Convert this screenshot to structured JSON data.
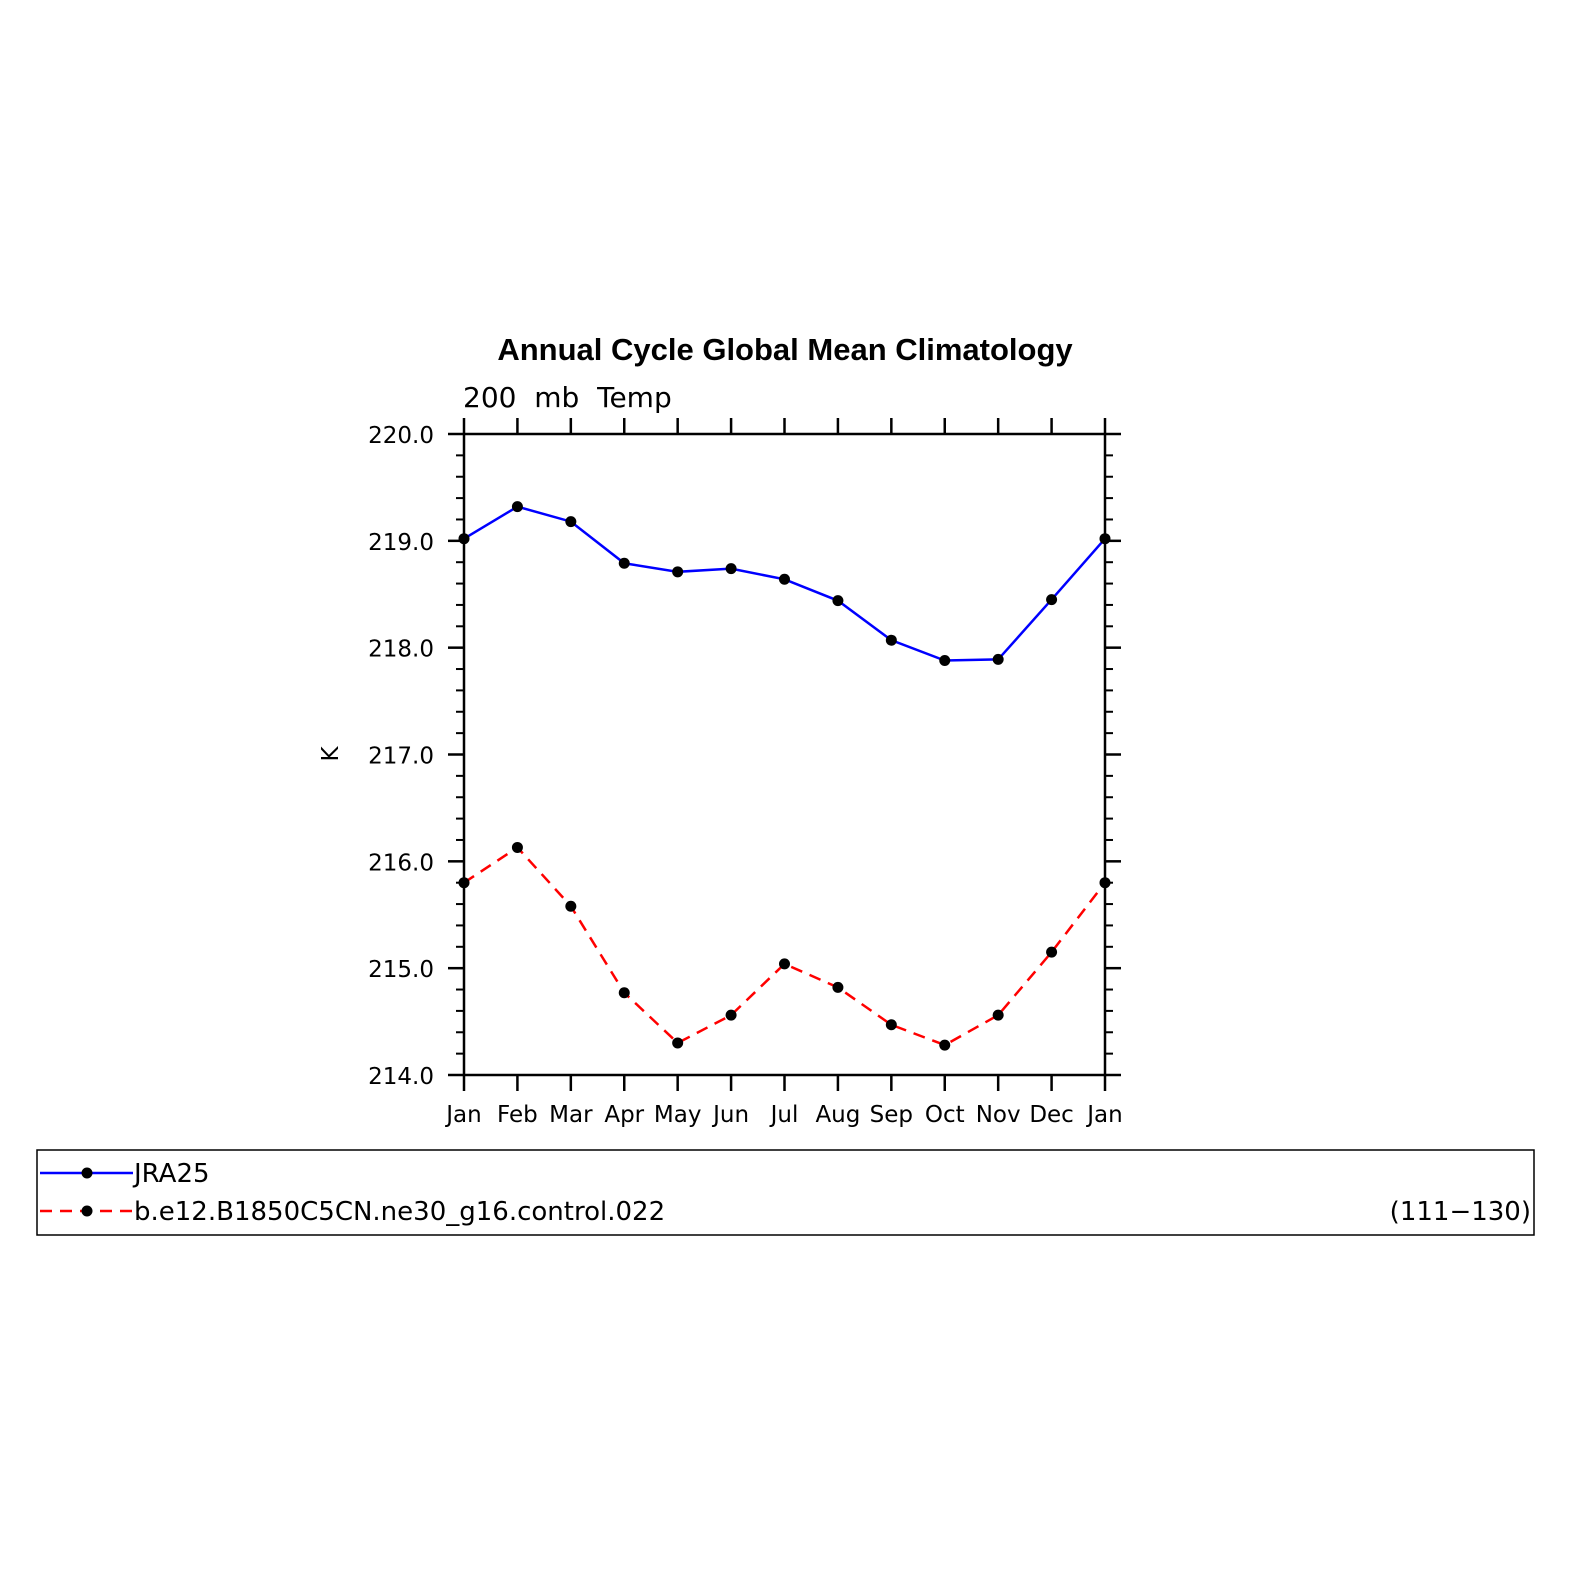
{
  "chart_data": {
    "type": "line",
    "title": "Annual Cycle Global Mean Climatology",
    "subtitle": "200  mb  Temp",
    "ylabel": "K",
    "xlabel": "",
    "categories": [
      "Jan",
      "Feb",
      "Mar",
      "Apr",
      "May",
      "Jun",
      "Jul",
      "Aug",
      "Sep",
      "Oct",
      "Nov",
      "Dec",
      "Jan"
    ],
    "ylim": [
      214.0,
      220.0
    ],
    "yticks": [
      "214.0",
      "215.0",
      "216.0",
      "217.0",
      "218.0",
      "219.0",
      "220.0"
    ],
    "series": [
      {
        "name": "JRA25",
        "color": "#0000ff",
        "dash": "solid",
        "values": [
          219.02,
          219.32,
          219.18,
          218.79,
          218.71,
          218.74,
          218.64,
          218.44,
          218.07,
          217.88,
          217.89,
          218.45,
          219.02
        ]
      },
      {
        "name": "b.e12.B1850C5CN.ne30_g16.control.022",
        "color": "#ff0000",
        "dash": "dashed",
        "values": [
          215.8,
          216.13,
          215.58,
          214.77,
          214.3,
          214.56,
          215.04,
          214.82,
          214.47,
          214.28,
          214.56,
          215.15,
          215.8
        ]
      }
    ],
    "legend": {
      "placement": "bottom",
      "years": "(111−130)"
    },
    "grid": false
  }
}
